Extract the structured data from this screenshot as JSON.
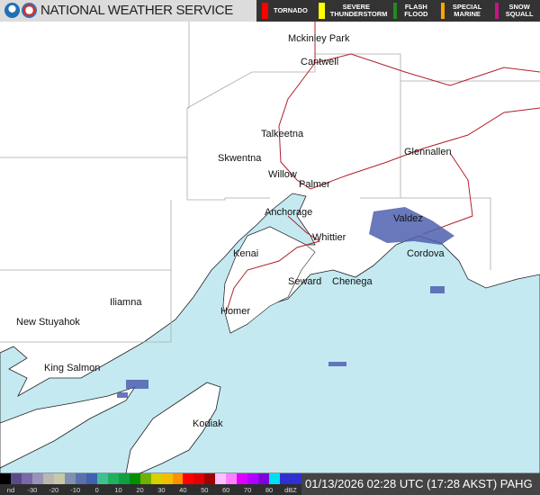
{
  "header": {
    "title": "NATIONAL WEATHER SERVICE",
    "logos": [
      "noaa-logo",
      "nws-logo"
    ]
  },
  "warnings": [
    {
      "label": "TORNADO",
      "color": "#ff0000"
    },
    {
      "label": "SEVERE THUNDERSTORM",
      "color": "#ffff00"
    },
    {
      "label": "FLASH FLOOD",
      "color": "#228b22"
    },
    {
      "label": "SPECIAL MARINE",
      "color": "#ffa500"
    },
    {
      "label": "SNOW SQUALL",
      "color": "#c71585"
    }
  ],
  "places": [
    "Mckinley Park",
    "Cantwell",
    "Talkeetna",
    "Skwentna",
    "Willow",
    "Palmer",
    "Glennallen",
    "Anchorage",
    "Whittier",
    "Valdez",
    "Kenai",
    "Seward",
    "Chenega",
    "Cordova",
    "Iliamna",
    "New Stuyahok",
    "Homer",
    "King Salmon",
    "Kodiak"
  ],
  "legend": {
    "ticks": [
      "nd",
      "-30",
      "-20",
      "-10",
      "0",
      "10",
      "20",
      "30",
      "40",
      "50",
      "60",
      "70",
      "80",
      "dBZ"
    ],
    "colors": [
      "#000000",
      "#5b4a8a",
      "#7a68a8",
      "#9a92b8",
      "#b8b8b0",
      "#c8c8a8",
      "#8090b0",
      "#5a70a8",
      "#4060b0",
      "#40c090",
      "#20b060",
      "#10a040",
      "#009000",
      "#70b000",
      "#d8d000",
      "#f0c000",
      "#ff9000",
      "#ff0000",
      "#e00000",
      "#a00000",
      "#ffc0ff",
      "#ff80ff",
      "#e000ff",
      "#b000ff",
      "#8000e0",
      "#00e0f0",
      "#3030d0",
      "#3030d0"
    ]
  },
  "timestamp": "01/13/2026 02:28 UTC (17:28 AKST) PAHG",
  "colors": {
    "water": "#c4e9f1",
    "land": "#ffffff",
    "roads": "#b0202a",
    "boundaries": "#999999",
    "radar": "#5060b0"
  }
}
